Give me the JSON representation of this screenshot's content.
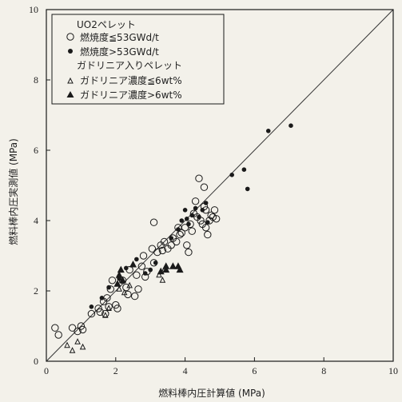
{
  "chart_data": {
    "type": "scatter",
    "title": "",
    "xlabel": "燃料棒内圧計算値 (MPa)",
    "ylabel": "燃料棒内圧実測値 (MPa)",
    "xlim": [
      0,
      10
    ],
    "ylim": [
      0,
      10
    ],
    "x_ticks": [
      "0",
      "2",
      "4",
      "6",
      "8",
      "10"
    ],
    "y_ticks": [
      "0",
      "2",
      "4",
      "6",
      "8",
      "10"
    ],
    "grid": false,
    "legend_position": "top-left",
    "reference_line": "y = x",
    "legend": {
      "heading_uo2": "UO2ペレット",
      "heading_gd": "ガドリニア入りペレット"
    },
    "colors": {
      "marker": "#1a1a1a",
      "background": "#f3f1ea",
      "line": "#333333"
    },
    "series": [
      {
        "name": "燃焼度≦53GWd/t",
        "marker": "open-circle",
        "points": [
          [
            0.25,
            0.95
          ],
          [
            0.35,
            0.75
          ],
          [
            0.75,
            0.95
          ],
          [
            0.9,
            0.85
          ],
          [
            1.0,
            1.0
          ],
          [
            1.05,
            0.9
          ],
          [
            1.3,
            1.35
          ],
          [
            1.5,
            1.5
          ],
          [
            1.55,
            1.4
          ],
          [
            1.65,
            1.7
          ],
          [
            1.7,
            1.35
          ],
          [
            1.75,
            1.8
          ],
          [
            1.8,
            1.55
          ],
          [
            1.85,
            2.05
          ],
          [
            1.9,
            2.3
          ],
          [
            2.0,
            1.6
          ],
          [
            2.05,
            1.5
          ],
          [
            2.2,
            2.3
          ],
          [
            2.3,
            2.1
          ],
          [
            2.35,
            1.9
          ],
          [
            2.4,
            2.6
          ],
          [
            2.55,
            1.85
          ],
          [
            2.6,
            2.45
          ],
          [
            2.65,
            2.05
          ],
          [
            2.75,
            2.7
          ],
          [
            2.8,
            3.0
          ],
          [
            2.85,
            2.4
          ],
          [
            2.9,
            2.55
          ],
          [
            3.05,
            3.2
          ],
          [
            3.1,
            2.8
          ],
          [
            3.1,
            3.95
          ],
          [
            3.2,
            3.1
          ],
          [
            3.3,
            3.3
          ],
          [
            3.35,
            3.15
          ],
          [
            3.4,
            3.4
          ],
          [
            3.5,
            3.2
          ],
          [
            3.6,
            3.3
          ],
          [
            3.65,
            3.5
          ],
          [
            3.75,
            3.4
          ],
          [
            3.8,
            3.8
          ],
          [
            3.85,
            3.6
          ],
          [
            3.9,
            3.65
          ],
          [
            4.0,
            3.8
          ],
          [
            4.05,
            3.3
          ],
          [
            4.1,
            3.1
          ],
          [
            4.15,
            3.9
          ],
          [
            4.2,
            3.7
          ],
          [
            4.25,
            4.2
          ],
          [
            4.3,
            4.55
          ],
          [
            4.35,
            4.1
          ],
          [
            4.4,
            5.2
          ],
          [
            4.45,
            4.0
          ],
          [
            4.5,
            3.9
          ],
          [
            4.55,
            4.95
          ],
          [
            4.55,
            4.4
          ],
          [
            4.6,
            3.8
          ],
          [
            4.6,
            4.3
          ],
          [
            4.65,
            3.6
          ],
          [
            4.7,
            4.0
          ],
          [
            4.75,
            4.15
          ],
          [
            4.8,
            4.1
          ],
          [
            4.85,
            4.3
          ],
          [
            4.9,
            4.05
          ]
        ]
      },
      {
        "name": "燃焼度>53GWd/t",
        "marker": "filled-circle",
        "points": [
          [
            1.3,
            1.55
          ],
          [
            1.6,
            1.8
          ],
          [
            1.8,
            2.1
          ],
          [
            2.1,
            2.35
          ],
          [
            2.3,
            2.65
          ],
          [
            2.6,
            2.9
          ],
          [
            2.85,
            2.5
          ],
          [
            3.0,
            2.6
          ],
          [
            3.15,
            2.8
          ],
          [
            3.6,
            3.5
          ],
          [
            3.8,
            3.75
          ],
          [
            3.9,
            4.0
          ],
          [
            4.0,
            4.3
          ],
          [
            4.05,
            4.05
          ],
          [
            4.1,
            3.9
          ],
          [
            4.2,
            4.15
          ],
          [
            4.3,
            4.35
          ],
          [
            4.4,
            4.1
          ],
          [
            4.5,
            4.3
          ],
          [
            4.6,
            4.5
          ],
          [
            4.65,
            3.95
          ],
          [
            5.35,
            5.3
          ],
          [
            5.7,
            5.45
          ],
          [
            5.8,
            4.9
          ],
          [
            6.4,
            6.55
          ],
          [
            7.05,
            6.7
          ]
        ]
      },
      {
        "name": "ガドリニア濃度≦6wt%",
        "marker": "open-triangle",
        "points": [
          [
            0.6,
            0.45
          ],
          [
            0.75,
            0.3
          ],
          [
            0.9,
            0.55
          ],
          [
            1.05,
            0.4
          ],
          [
            1.7,
            1.3
          ],
          [
            1.8,
            1.5
          ],
          [
            2.1,
            2.05
          ],
          [
            2.25,
            1.95
          ],
          [
            2.4,
            2.15
          ],
          [
            3.25,
            2.45
          ],
          [
            3.35,
            2.3
          ],
          [
            3.4,
            2.6
          ]
        ]
      },
      {
        "name": "ガドリニア濃度>6wt%",
        "marker": "filled-triangle",
        "points": [
          [
            2.05,
            2.2
          ],
          [
            2.1,
            2.45
          ],
          [
            2.15,
            2.6
          ],
          [
            2.2,
            2.3
          ],
          [
            2.5,
            2.75
          ],
          [
            3.3,
            2.55
          ],
          [
            3.45,
            2.6
          ],
          [
            3.45,
            2.7
          ],
          [
            3.65,
            2.7
          ],
          [
            3.8,
            2.7
          ],
          [
            3.85,
            2.6
          ]
        ]
      }
    ]
  }
}
